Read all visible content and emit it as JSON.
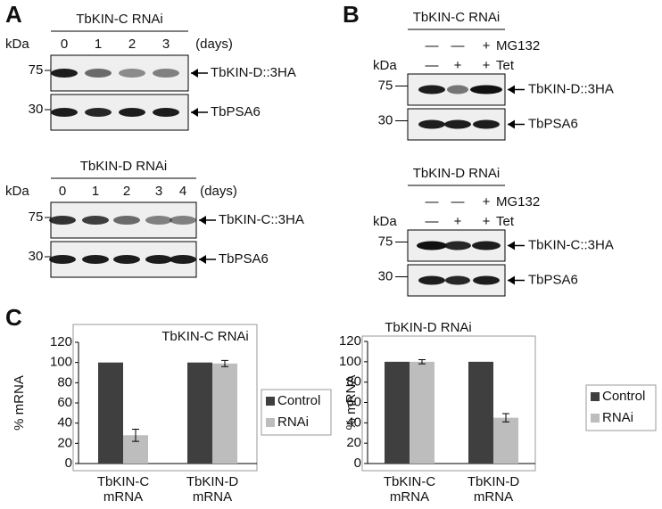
{
  "panel_a": {
    "label": "A",
    "blots": [
      {
        "title": "TbKIN-C RNAi",
        "kda_label": "kDa",
        "lanes": [
          "0",
          "1",
          "2",
          "3"
        ],
        "lanes_unit": "(days)",
        "rows": [
          {
            "marker": "75",
            "protein": "TbKIN-D::3HA"
          },
          {
            "marker": "30",
            "protein": "TbPSA6"
          }
        ]
      },
      {
        "title": "TbKIN-D RNAi",
        "kda_label": "kDa",
        "lanes": [
          "0",
          "1",
          "2",
          "3",
          "4"
        ],
        "lanes_unit": "(days)",
        "rows": [
          {
            "marker": "75",
            "protein": "TbKIN-C::3HA"
          },
          {
            "marker": "30",
            "protein": "TbPSA6"
          }
        ]
      }
    ]
  },
  "panel_b": {
    "label": "B",
    "blots": [
      {
        "title": "TbKIN-C RNAi",
        "kda_label": "kDa",
        "treatments": [
          {
            "name": "MG132",
            "signs": [
              "—",
              "—",
              "+"
            ]
          },
          {
            "name": "Tet",
            "signs": [
              "—",
              "+",
              "+"
            ]
          }
        ],
        "rows": [
          {
            "marker": "75",
            "protein": "TbKIN-D::3HA"
          },
          {
            "marker": "30",
            "protein": "TbPSA6"
          }
        ]
      },
      {
        "title": "TbKIN-D RNAi",
        "kda_label": "kDa",
        "treatments": [
          {
            "name": "MG132",
            "signs": [
              "—",
              "—",
              "+"
            ]
          },
          {
            "name": "Tet",
            "signs": [
              "—",
              "+",
              "+"
            ]
          }
        ],
        "rows": [
          {
            "marker": "75",
            "protein": "TbKIN-C::3HA"
          },
          {
            "marker": "30",
            "protein": "TbPSA6"
          }
        ]
      }
    ]
  },
  "panel_c": {
    "label": "C"
  },
  "chart_data": [
    {
      "type": "bar",
      "title": "TbKIN-C RNAi",
      "ylabel": "% mRNA",
      "categories": [
        "TbKIN-C mRNA",
        "TbKIN-D mRNA"
      ],
      "series": [
        {
          "name": "Control",
          "color": "#3f3f3f",
          "values": [
            100,
            100
          ]
        },
        {
          "name": "RNAi",
          "color": "#bdbdbd",
          "values": [
            28,
            99
          ],
          "errors": [
            6,
            3
          ]
        }
      ],
      "ylim": [
        0,
        120
      ],
      "yticks": [
        0,
        20,
        40,
        60,
        80,
        100,
        120
      ],
      "legend": "right"
    },
    {
      "type": "bar",
      "title": "TbKIN-D RNAi",
      "ylabel": "% mRNA",
      "categories": [
        "TbKIN-C mRNA",
        "TbKIN-D mRNA"
      ],
      "series": [
        {
          "name": "Control",
          "color": "#3f3f3f",
          "values": [
            100,
            100
          ]
        },
        {
          "name": "RNAi",
          "color": "#bdbdbd",
          "values": [
            100,
            45
          ],
          "errors": [
            2,
            4
          ]
        }
      ],
      "ylim": [
        0,
        120
      ],
      "yticks": [
        0,
        20,
        40,
        60,
        80,
        100,
        120
      ],
      "legend": "right"
    }
  ]
}
